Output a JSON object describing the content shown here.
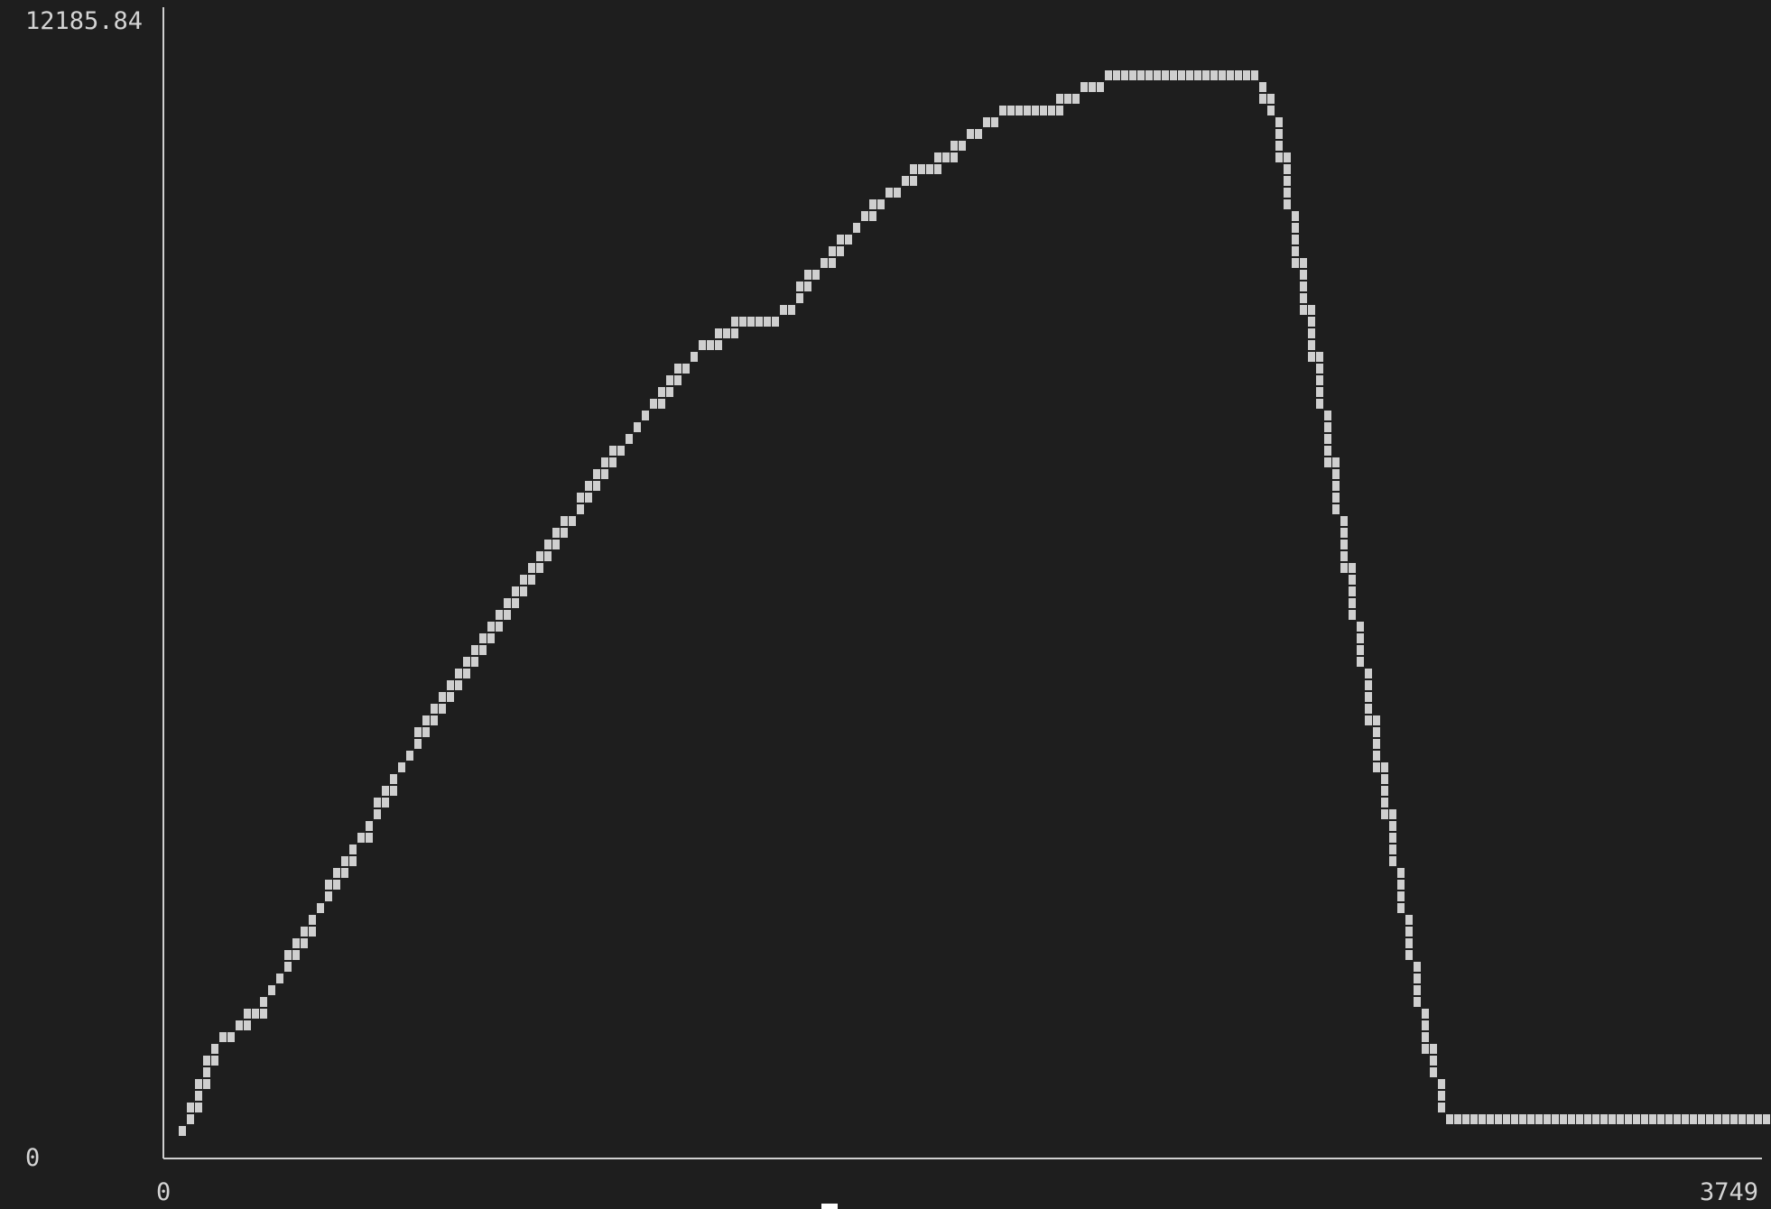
{
  "chart_data": {
    "type": "line",
    "style": "terminal-ascii-plot",
    "title": "",
    "xlabel": "",
    "ylabel": "",
    "xlim": [
      0,
      3749
    ],
    "ylim": [
      0,
      12185.84
    ],
    "x_tick_labels": [
      "0",
      "3749"
    ],
    "y_tick_labels": [
      "12185.84",
      "0"
    ],
    "grid": false,
    "legend": "none",
    "colors": {
      "background": "#1e1e1e",
      "series": "#cfcfcf",
      "text": "#d4d4d4"
    },
    "series": [
      {
        "x": [
          25,
          50,
          75,
          100,
          150,
          200,
          250,
          300,
          350,
          400,
          450,
          500,
          550,
          600,
          650,
          700,
          750,
          800,
          850,
          900,
          950,
          1000,
          1050,
          1100,
          1150,
          1200,
          1250,
          1300,
          1350,
          1400,
          1450,
          1500,
          1550,
          1600,
          1650,
          1700,
          1750,
          1800,
          1850,
          1900,
          1950,
          2000,
          2050,
          2100,
          2150,
          2200,
          2250,
          2300,
          2350,
          2400,
          2450,
          2500,
          2550,
          2600,
          2650,
          2700,
          2750,
          2800,
          2850,
          2900,
          2950,
          3000,
          3050,
          3100,
          3150,
          3200,
          3250,
          3300,
          3350,
          3400,
          3450,
          3500,
          3550,
          3600,
          3650,
          3700,
          3749
        ],
        "y": [
          150,
          500,
          850,
          1100,
          1300,
          1500,
          1900,
          2300,
          2700,
          3100,
          3500,
          3950,
          4300,
          4750,
          5100,
          5400,
          5800,
          6100,
          6450,
          6800,
          7100,
          7500,
          7800,
          8100,
          8400,
          8700,
          8950,
          9100,
          9250,
          9250,
          9350,
          9700,
          10000,
          10250,
          10500,
          10700,
          10900,
          11000,
          11200,
          11400,
          11550,
          11550,
          11600,
          11700,
          11850,
          11950,
          12000,
          12000,
          12000,
          12000,
          12000,
          12000,
          12000,
          11500,
          10000,
          8600,
          7000,
          5500,
          4100,
          2600,
          1300,
          300,
          300,
          300,
          300,
          300,
          300,
          300,
          300,
          300,
          300,
          300,
          300,
          300,
          300,
          300,
          300
        ]
      }
    ]
  }
}
